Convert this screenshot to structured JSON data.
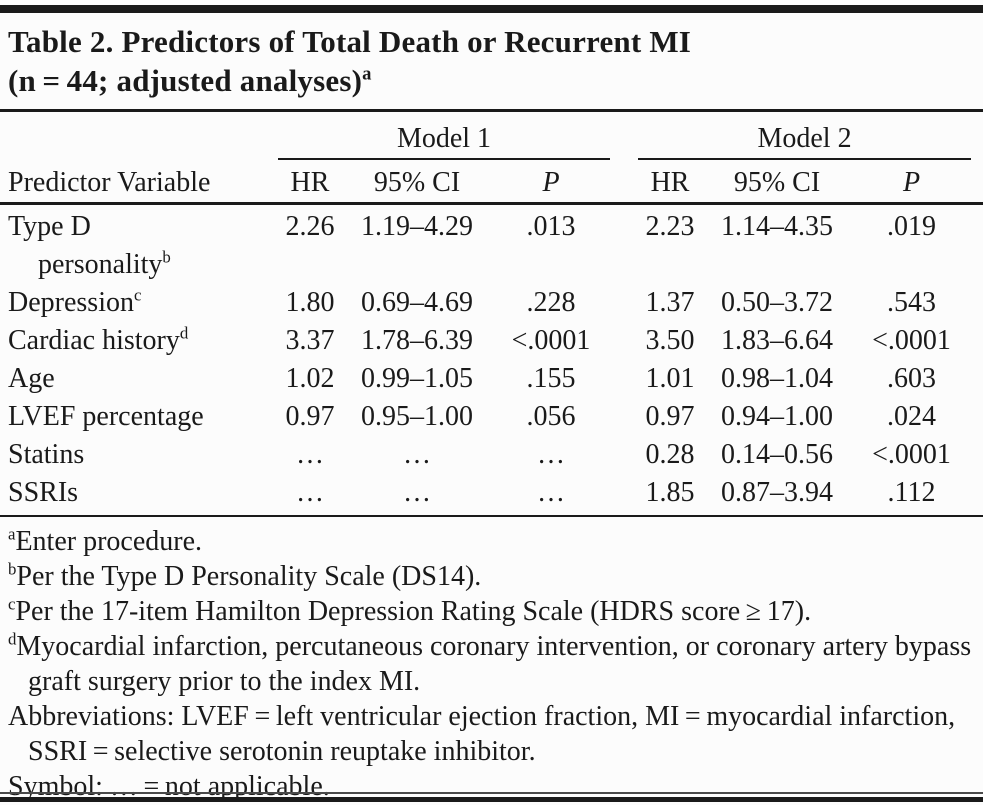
{
  "title": {
    "line1": "Table 2. Predictors of Total Death or Recurrent MI",
    "line2": "(n = 44; adjusted analyses)",
    "sup": "a"
  },
  "table": {
    "spanners": [
      "Model 1",
      "Model 2"
    ],
    "predictor_header": "Predictor Variable",
    "sub_headers": [
      "HR",
      "95% CI",
      "P"
    ],
    "rows": [
      {
        "label": "Type D",
        "label2": "personality",
        "sup": "b",
        "cells": [
          "2.26",
          "1.19–4.29",
          ".013",
          "2.23",
          "1.14–4.35",
          ".019"
        ]
      },
      {
        "label": "Depression",
        "sup": "c",
        "cells": [
          "1.80",
          "0.69–4.69",
          ".228",
          "1.37",
          "0.50–3.72",
          ".543"
        ]
      },
      {
        "label": "Cardiac history",
        "sup": "d",
        "cells": [
          "3.37",
          "1.78–6.39",
          "<.0001",
          "3.50",
          "1.83–6.64",
          "<.0001"
        ]
      },
      {
        "label": "Age",
        "cells": [
          "1.02",
          "0.99–1.05",
          ".155",
          "1.01",
          "0.98–1.04",
          ".603"
        ]
      },
      {
        "label": "LVEF percentage",
        "cells": [
          "0.97",
          "0.95–1.00",
          ".056",
          "0.97",
          "0.94–1.00",
          ".024"
        ]
      },
      {
        "label": "Statins",
        "cells": [
          "…",
          "…",
          "…",
          "0.28",
          "0.14–0.56",
          "<.0001"
        ]
      },
      {
        "label": "SSRIs",
        "cells": [
          "…",
          "…",
          "…",
          "1.85",
          "0.87–3.94",
          ".112"
        ]
      }
    ]
  },
  "footnotes": [
    {
      "sup": "a",
      "text": "Enter procedure."
    },
    {
      "sup": "b",
      "text": "Per the Type D Personality Scale (DS14)."
    },
    {
      "sup": "c",
      "text": "Per the 17-item Hamilton Depression Rating Scale (HDRS score ≥ 17)."
    },
    {
      "sup": "d",
      "text": "Myocardial infarction, percutaneous coronary intervention, or coronary artery bypass graft surgery prior to the index MI."
    },
    {
      "text": "Abbreviations: LVEF = left ventricular ejection fraction, MI = myocardial infarction, SSRI = selective serotonin reuptake inhibitor."
    },
    {
      "text": "Symbol: … = not applicable."
    }
  ]
}
